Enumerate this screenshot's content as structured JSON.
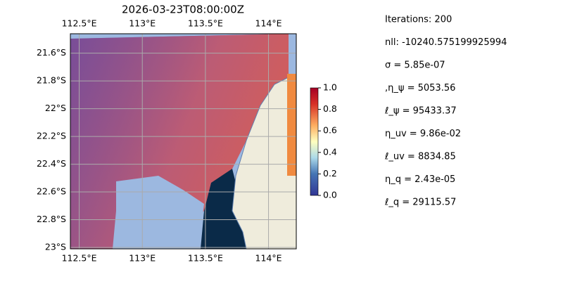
{
  "title": "2026-03-23T08:00:00Z",
  "map": {
    "lonlim": [
      112.43,
      114.22
    ],
    "latlim": [
      -23.01,
      -21.46
    ],
    "lon_ticks": [
      {
        "value": 112.5,
        "label": "112.5°E"
      },
      {
        "value": 113,
        "label": "113°E"
      },
      {
        "value": 113.5,
        "label": "113.5°E"
      },
      {
        "value": 114,
        "label": "114°E"
      }
    ],
    "lat_ticks": [
      {
        "value": -21.6,
        "label": "21.6°S"
      },
      {
        "value": -21.8,
        "label": "21.8°S"
      },
      {
        "value": -22,
        "label": "22°S"
      },
      {
        "value": -22.2,
        "label": "22.2°S"
      },
      {
        "value": -22.4,
        "label": "22.4°S"
      },
      {
        "value": -22.6,
        "label": "22.6°S"
      },
      {
        "value": -22.8,
        "label": "22.8°S"
      },
      {
        "value": -23,
        "label": "23°S"
      }
    ],
    "colorbar": {
      "range": [
        0,
        1
      ],
      "ticks": [
        {
          "value": 0,
          "label": "0.0"
        },
        0.2,
        0.4,
        0.6,
        0.8,
        {
          "value": 1,
          "label": "1.0"
        }
      ]
    }
  },
  "info": [
    "Iterations: 200",
    "nll: -10240.575199925994",
    "σ = 5.85e-07",
    ",η_ψ = 5053.56",
    "ℓ_ψ = 95433.37",
    "η_uv = 9.86e-02",
    "ℓ_uv = 8834.85",
    "η_q = 2.43e-05",
    "ℓ_q = 29115.57"
  ]
}
